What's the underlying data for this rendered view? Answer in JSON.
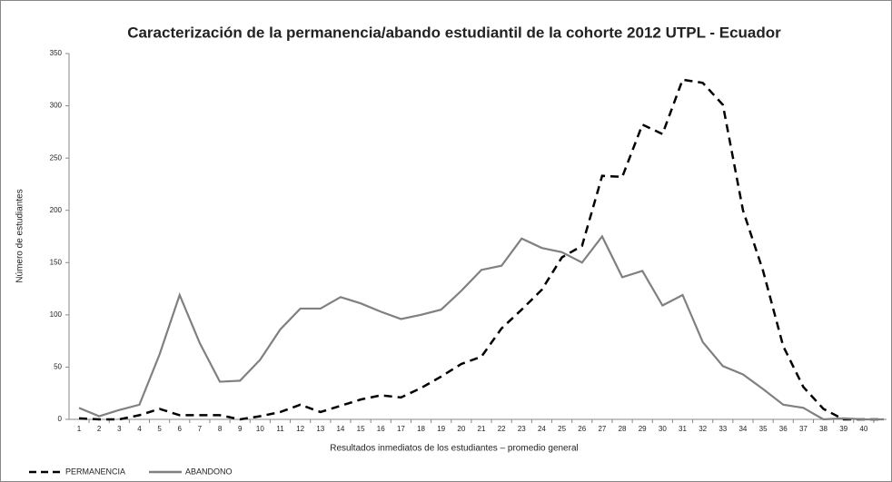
{
  "chart_data": {
    "type": "line",
    "title": "Caracterización de la permanencia/abando estudiantil de la cohorte 2012  UTPL - Ecuador",
    "x_label": "Resultados inmediatos de los estudiantes – promedio general",
    "y_label": "Número de estudiantes",
    "categories": [
      "1",
      "2",
      "3",
      "4",
      "5",
      "6",
      "7",
      "8",
      "9",
      "10",
      "11",
      "12",
      "13",
      "14",
      "15",
      "16",
      "17",
      "18",
      "19",
      "20",
      "21",
      "22",
      "23",
      "24",
      "25",
      "26",
      "27",
      "28",
      "29",
      "30",
      "31",
      "32",
      "33",
      "34",
      "35",
      "36",
      "37",
      "38",
      "39",
      "40",
      null
    ],
    "series": [
      {
        "name": "PERMANENCIA",
        "color": "#000000",
        "line_style": "dashed",
        "values": [
          1,
          0,
          0,
          4,
          10,
          4,
          4,
          4,
          0,
          3,
          7,
          14,
          7,
          13,
          19,
          23,
          21,
          30,
          41,
          53,
          60,
          87,
          105,
          124,
          155,
          166,
          233,
          232,
          282,
          273,
          325,
          322,
          301,
          200,
          142,
          70,
          31,
          10,
          0,
          0,
          0
        ]
      },
      {
        "name": "ABANDONO",
        "color": "#808080",
        "line_style": "solid",
        "values": [
          11,
          3,
          9,
          14,
          62,
          119,
          73,
          36,
          37,
          57,
          86,
          106,
          106,
          117,
          111,
          103,
          96,
          100,
          105,
          123,
          143,
          147,
          173,
          164,
          160,
          150,
          175,
          136,
          142,
          109,
          119,
          74,
          51,
          43,
          29,
          14,
          11,
          0,
          1,
          0,
          0
        ]
      }
    ],
    "ylim": [
      0,
      350
    ],
    "yticks": [
      0,
      50,
      100,
      150,
      200,
      250,
      300,
      350
    ],
    "grid": false,
    "legend": "bottom-left"
  }
}
